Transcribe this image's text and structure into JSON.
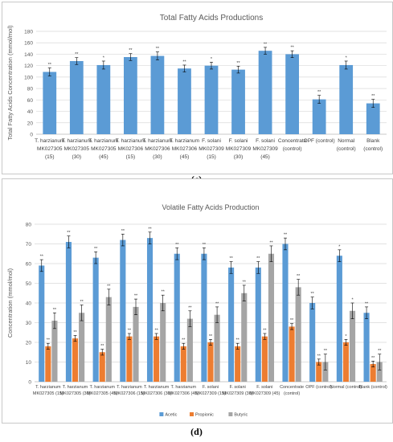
{
  "captions": [
    "(c)",
    "(d)"
  ],
  "chart_data": [
    {
      "type": "bar",
      "title": "Total Fatty Acids Productions",
      "ylabel": "Total Fatty Acids Concentration (mmol/mol)",
      "ylim": [
        0,
        180
      ],
      "yticks": [
        0,
        20,
        40,
        60,
        80,
        100,
        120,
        140,
        160,
        180
      ],
      "grid": true,
      "color": "#5b9bd5",
      "categories": [
        [
          "T. harzianum",
          "MK027305",
          "(15)"
        ],
        [
          "T. harzianum",
          "MK027305",
          "(30)"
        ],
        [
          "T. harzianum",
          "MK027305",
          "(45)"
        ],
        [
          "T. harzianum",
          "MK027306",
          "(15)"
        ],
        [
          "T. harzianum",
          "MK027306",
          "(30)"
        ],
        [
          "T. harzianum",
          "MK027306",
          "(45)"
        ],
        [
          "F. solani",
          "MK027309",
          "(15)"
        ],
        [
          "F. solani",
          "MK027309",
          "(30)"
        ],
        [
          "F. solani",
          "MK027309",
          "(45)"
        ],
        [
          "Concentrate",
          "(control)"
        ],
        [
          "OPF (control)"
        ],
        [
          "Normal",
          "(control)"
        ],
        [
          "Blank",
          "(control)"
        ]
      ],
      "values": [
        109,
        128,
        121,
        135,
        137,
        115,
        120,
        113,
        146,
        140,
        61,
        121,
        54
      ],
      "errors": [
        7,
        6,
        7,
        6,
        7,
        6,
        6,
        6,
        6,
        6,
        7,
        7,
        7
      ],
      "annotations": [
        "**",
        "**",
        "*",
        "**",
        "**",
        "**",
        "*",
        "**",
        "**",
        "**",
        "**",
        "*",
        "**"
      ]
    },
    {
      "type": "bar",
      "title": "Volatile Fatty Acids Production",
      "ylabel": "Concentration (mmol/mol)",
      "ylim": [
        0,
        80
      ],
      "yticks": [
        0,
        10,
        20,
        30,
        40,
        50,
        60,
        70,
        80
      ],
      "grid": true,
      "legend_position": "bottom",
      "categories": [
        [
          "T. harzianum",
          "MK027305 (15)"
        ],
        [
          "T. harzianum",
          "MK027305 (30)"
        ],
        [
          "T. harzianum",
          "MK027305 (45)"
        ],
        [
          "T. harzianum",
          "MK027306 (15)"
        ],
        [
          "T. harzianum",
          "MK027306 (30)"
        ],
        [
          "T. harzianum",
          "MK027306 (45)"
        ],
        [
          "F. solani",
          "MK027309 (15)"
        ],
        [
          "F. solani",
          "MK027309 (30)"
        ],
        [
          "F. solani",
          "MK027309 (45)"
        ],
        [
          "Concentrate",
          "(control)"
        ],
        [
          "OPF (control)"
        ],
        [
          "Normal (control)"
        ],
        [
          "Blank (control)"
        ]
      ],
      "series": [
        {
          "name": "Acetic",
          "color": "#5b9bd5",
          "values": [
            59,
            71,
            63,
            72,
            73,
            65,
            65,
            58,
            58,
            70,
            40,
            64,
            35
          ],
          "errors": [
            3,
            3,
            3,
            3,
            3,
            3,
            3,
            3,
            3,
            3,
            3,
            3,
            3
          ],
          "annotations": [
            "**",
            "**",
            "**",
            "**",
            "**",
            "**",
            "**",
            "**",
            "**",
            "**",
            "**",
            "*",
            "**"
          ]
        },
        {
          "name": "Propionic",
          "color": "#ed7d31",
          "values": [
            18,
            22,
            15,
            23,
            23,
            18,
            20,
            18,
            23,
            28,
            10,
            20,
            9
          ],
          "errors": [
            1.5,
            1.5,
            1.5,
            1.5,
            1.5,
            1.5,
            1.5,
            1.5,
            1.5,
            1.5,
            1.5,
            1.5,
            1.5
          ],
          "annotations": [
            "**",
            "**",
            "**",
            "**",
            "**",
            "**",
            "**",
            "**",
            "**",
            "**",
            "**",
            "*",
            "**"
          ]
        },
        {
          "name": "Butyric",
          "color": "#a5a5a5",
          "values": [
            31,
            35,
            43,
            38,
            40,
            32,
            34,
            45,
            65,
            48,
            10,
            36,
            10
          ],
          "errors": [
            4,
            4,
            4,
            4,
            4,
            4,
            4,
            4,
            4,
            4,
            4,
            4,
            4
          ],
          "annotations": [
            "**",
            "**",
            "**",
            "**",
            "**",
            "**",
            "**",
            "**",
            "**",
            "**",
            "**",
            "*",
            "**"
          ]
        }
      ]
    }
  ]
}
